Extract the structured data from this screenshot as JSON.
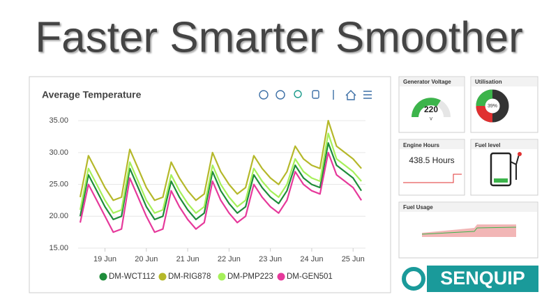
{
  "header": {
    "title": "Faster  Smarter  Smoother"
  },
  "chart_data": {
    "type": "line",
    "title": "Average Temperature",
    "x": [
      18.4,
      18.6,
      18.8,
      19.0,
      19.2,
      19.4,
      19.6,
      19.8,
      20.0,
      20.2,
      20.4,
      20.6,
      20.8,
      21.0,
      21.2,
      21.4,
      21.6,
      21.8,
      22.0,
      22.2,
      22.4,
      22.6,
      22.8,
      23.0,
      23.2,
      23.4,
      23.6,
      23.8,
      24.0,
      24.2,
      24.4,
      24.6,
      24.8,
      25.0,
      25.2
    ],
    "series": [
      {
        "name": "DM-WCT112",
        "color": "#1e8c3a",
        "values": [
          20,
          26.5,
          24,
          21.5,
          19.5,
          20,
          27.5,
          24.5,
          21.5,
          19.5,
          20,
          25.5,
          23,
          21,
          19.5,
          20.5,
          27,
          24,
          22,
          20.5,
          21.5,
          26.5,
          24.5,
          23,
          22,
          24,
          28,
          26,
          25,
          24.5,
          31.5,
          28,
          27,
          26,
          24
        ]
      },
      {
        "name": "DM-RIG878",
        "color": "#b5b82a",
        "values": [
          23,
          29.5,
          27,
          24.5,
          22.5,
          23,
          30.5,
          27.5,
          24.5,
          22.5,
          23,
          28.5,
          26,
          24,
          22.5,
          23.5,
          30,
          27,
          25,
          23.5,
          24.5,
          29.5,
          27.5,
          26,
          25,
          27,
          31,
          29,
          28,
          27.5,
          35,
          31,
          30,
          29,
          27.5
        ]
      },
      {
        "name": "DM-PMP223",
        "color": "#a6f05a",
        "values": [
          21,
          27.5,
          25,
          22.5,
          20.5,
          21,
          28.5,
          25.5,
          22.5,
          20.5,
          21,
          26.5,
          24,
          22,
          20.5,
          21.5,
          28,
          25,
          23,
          21.5,
          22.5,
          27.5,
          25.5,
          24,
          23,
          25,
          29,
          27,
          26,
          25.5,
          33,
          29,
          28,
          27,
          25.5
        ]
      },
      {
        "name": "DM-GEN501",
        "color": "#e6399b",
        "values": [
          19,
          25,
          22.5,
          20,
          17.5,
          18,
          26,
          23,
          20,
          17.5,
          18,
          24,
          21.5,
          19.5,
          18,
          19,
          25.5,
          22.5,
          20.5,
          19,
          20,
          25,
          23,
          21.5,
          20.5,
          22.5,
          27,
          25,
          24,
          23.5,
          30,
          26.5,
          25.5,
          24.5,
          22.5
        ]
      }
    ],
    "xlim": [
      18.35,
      25.3
    ],
    "xticks": [
      {
        "value": 19,
        "label": "19 Jun"
      },
      {
        "value": 20,
        "label": "20 Jun"
      },
      {
        "value": 21,
        "label": "21 Jun"
      },
      {
        "value": 22,
        "label": "22 Jun"
      },
      {
        "value": 23,
        "label": "23 Jun"
      },
      {
        "value": 24,
        "label": "24 Jun"
      },
      {
        "value": 25,
        "label": "25 Jun"
      }
    ],
    "ylim": [
      15,
      36
    ],
    "yticks": [
      {
        "value": 15,
        "label": "15.00"
      },
      {
        "value": 20,
        "label": "20.00"
      },
      {
        "value": 25,
        "label": "25.00"
      },
      {
        "value": 30,
        "label": "30.00"
      },
      {
        "value": 35,
        "label": "35.00"
      }
    ],
    "grid": true
  },
  "widgets": {
    "voltage": {
      "title": "Generator Voltage",
      "value": "220",
      "unit": "V"
    },
    "utilisation": {
      "title": "Utilisation",
      "value": "39%"
    },
    "engine": {
      "title": "Engine Hours",
      "value": "438.5 Hours"
    },
    "fuel": {
      "title": "Fuel level"
    },
    "usage": {
      "title": "Fuel Usage"
    }
  },
  "logo": {
    "text": "SENQUIP"
  }
}
